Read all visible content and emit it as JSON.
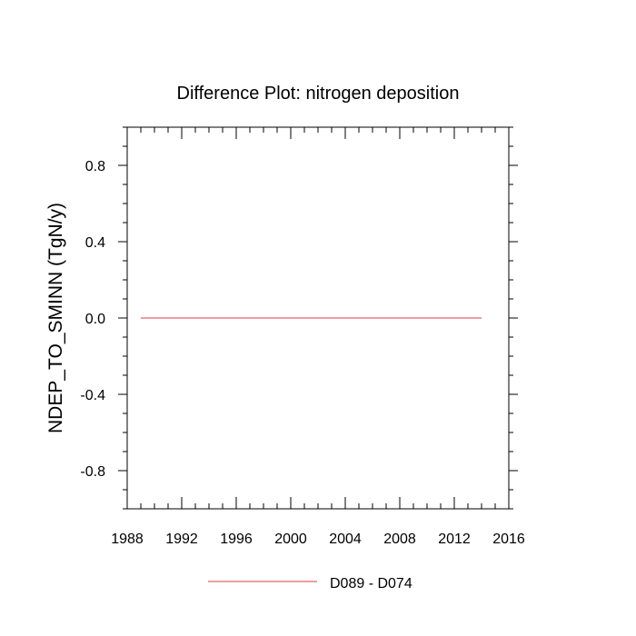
{
  "chart_data": {
    "type": "line",
    "title": "Difference Plot: nitrogen deposition",
    "xlabel": "",
    "ylabel": "NDEP_TO_SMINN  (TgN/y)",
    "xlim": [
      1988,
      2016
    ],
    "ylim": [
      -1.0,
      1.0
    ],
    "x_ticks": [
      1988,
      1992,
      1996,
      2000,
      2004,
      2008,
      2012,
      2016
    ],
    "x_tick_labels": [
      "1988",
      "1992",
      "1996",
      "2000",
      "2004",
      "2008",
      "2012",
      "2016"
    ],
    "y_ticks": [
      -0.8,
      -0.4,
      0.0,
      0.4,
      0.8
    ],
    "y_tick_labels": [
      "-0.8",
      "-0.4",
      "0.0",
      "0.4",
      "0.8"
    ],
    "grid": false,
    "legend_position": "bottom-center",
    "series": [
      {
        "name": "D089 - D074",
        "color": "#e06666",
        "x": [
          1989,
          1990,
          1991,
          1992,
          1993,
          1994,
          1995,
          1996,
          1997,
          1998,
          1999,
          2000,
          2001,
          2002,
          2003,
          2004,
          2005,
          2006,
          2007,
          2008,
          2009,
          2010,
          2011,
          2012,
          2013,
          2014
        ],
        "y": [
          0,
          0,
          0,
          0,
          0,
          0,
          0,
          0,
          0,
          0,
          0,
          0,
          0,
          0,
          0,
          0,
          0,
          0,
          0,
          0,
          0,
          0,
          0,
          0,
          0,
          0
        ]
      }
    ]
  }
}
